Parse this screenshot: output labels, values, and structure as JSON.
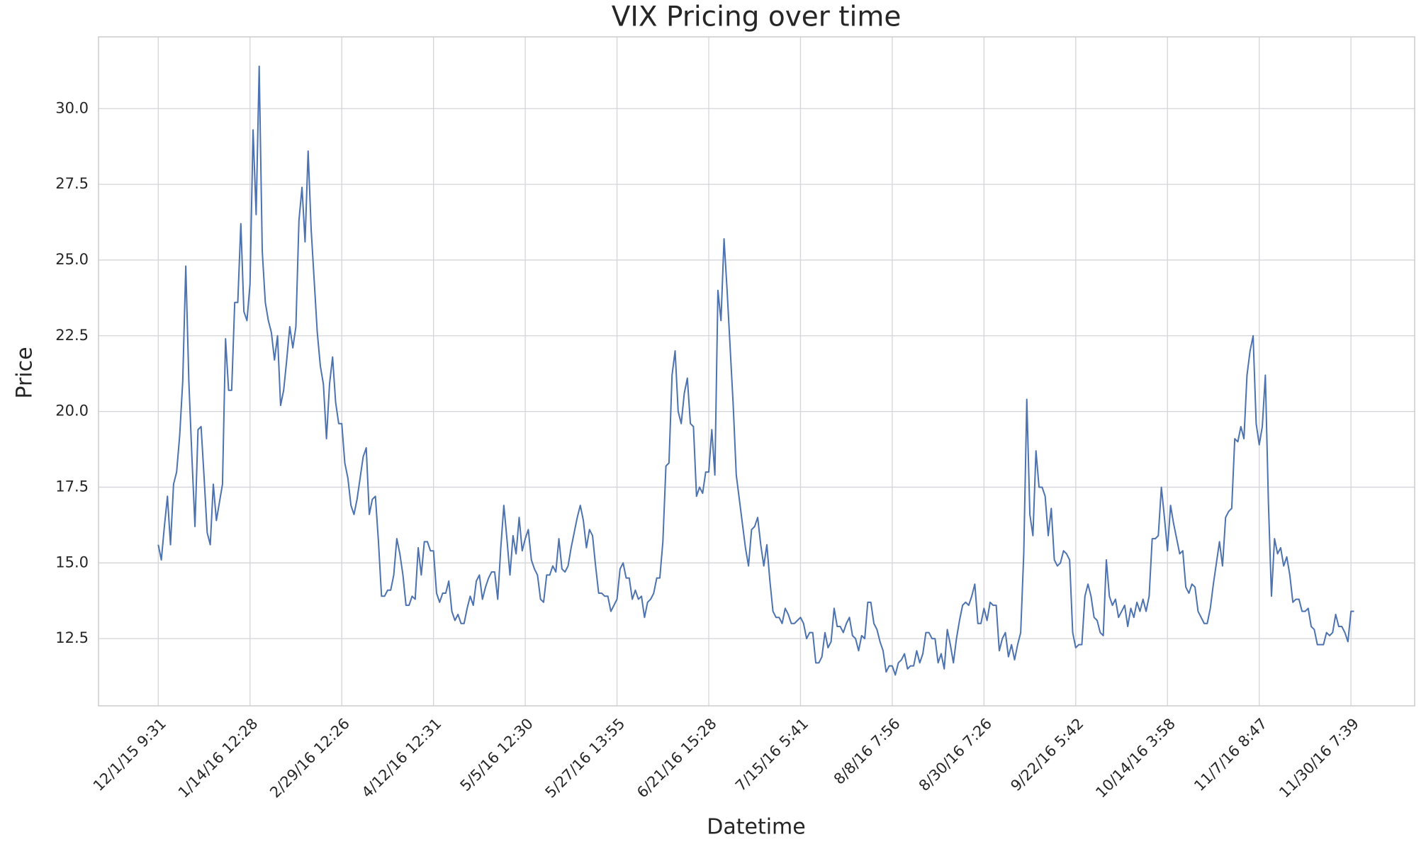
{
  "chart_data": {
    "type": "line",
    "title": "VIX Pricing over time",
    "x_label": "Datetime",
    "y_label": "Price",
    "categories": [
      "12/1/15 9:31",
      null,
      null,
      null,
      null,
      null,
      null,
      null,
      null,
      null,
      null,
      null,
      null,
      null,
      null,
      null,
      null,
      null,
      null,
      null,
      null,
      null,
      null,
      null,
      null,
      null,
      null,
      null,
      null,
      null,
      "1/14/16 12:28",
      null,
      null,
      null,
      null,
      null,
      null,
      null,
      null,
      null,
      null,
      null,
      null,
      null,
      null,
      null,
      null,
      null,
      null,
      null,
      null,
      null,
      null,
      null,
      null,
      null,
      null,
      null,
      null,
      null,
      "2/29/16 12:26",
      null,
      null,
      null,
      null,
      null,
      null,
      null,
      null,
      null,
      null,
      null,
      null,
      null,
      null,
      null,
      null,
      null,
      null,
      null,
      null,
      null,
      null,
      null,
      null,
      null,
      null,
      null,
      null,
      null,
      "4/12/16 12:31",
      null,
      null,
      null,
      null,
      null,
      null,
      null,
      null,
      null,
      null,
      null,
      null,
      null,
      null,
      null,
      null,
      null,
      null,
      null,
      null,
      null,
      null,
      null,
      null,
      null,
      null,
      null,
      null,
      null,
      "5/5/16 12:30",
      null,
      null,
      null,
      null,
      null,
      null,
      null,
      null,
      null,
      null,
      null,
      null,
      null,
      null,
      null,
      null,
      null,
      null,
      null,
      null,
      null,
      null,
      null,
      null,
      null,
      null,
      null,
      null,
      null,
      "5/27/16 13:55",
      null,
      null,
      null,
      null,
      null,
      null,
      null,
      null,
      null,
      null,
      null,
      null,
      null,
      null,
      null,
      null,
      null,
      null,
      null,
      null,
      null,
      null,
      null,
      null,
      null,
      null,
      null,
      null,
      null,
      "6/21/16 15:28",
      null,
      null,
      null,
      null,
      null,
      null,
      null,
      null,
      null,
      null,
      null,
      null,
      null,
      null,
      null,
      null,
      null,
      null,
      null,
      null,
      null,
      null,
      null,
      null,
      null,
      null,
      null,
      null,
      null,
      "7/15/16 5:41",
      null,
      null,
      null,
      null,
      null,
      null,
      null,
      null,
      null,
      null,
      null,
      null,
      null,
      null,
      null,
      null,
      null,
      null,
      null,
      null,
      null,
      null,
      null,
      null,
      null,
      null,
      null,
      null,
      null,
      "8/8/16 7:56",
      null,
      null,
      null,
      null,
      null,
      null,
      null,
      null,
      null,
      null,
      null,
      null,
      null,
      null,
      null,
      null,
      null,
      null,
      null,
      null,
      null,
      null,
      null,
      null,
      null,
      null,
      null,
      null,
      null,
      "8/30/16 7:26",
      null,
      null,
      null,
      null,
      null,
      null,
      null,
      null,
      null,
      null,
      null,
      null,
      null,
      null,
      null,
      null,
      null,
      null,
      null,
      null,
      null,
      null,
      null,
      null,
      null,
      null,
      null,
      null,
      null,
      "9/22/16 5:42",
      null,
      null,
      null,
      null,
      null,
      null,
      null,
      null,
      null,
      null,
      null,
      null,
      null,
      null,
      null,
      null,
      null,
      null,
      null,
      null,
      null,
      null,
      null,
      null,
      null,
      null,
      null,
      null,
      null,
      "10/14/16 3:58",
      null,
      null,
      null,
      null,
      null,
      null,
      null,
      null,
      null,
      null,
      null,
      null,
      null,
      null,
      null,
      null,
      null,
      null,
      null,
      null,
      null,
      null,
      null,
      null,
      null,
      null,
      null,
      null,
      null,
      "11/7/16 8:47",
      null,
      null,
      null,
      null,
      null,
      null,
      null,
      null,
      null,
      null,
      null,
      null,
      null,
      null,
      null,
      null,
      null,
      null,
      null,
      null,
      null,
      null,
      null,
      null,
      null,
      null,
      null,
      null,
      null,
      "11/30/16 7:39",
      null
    ],
    "values": [
      15.6,
      15.1,
      16.2,
      17.2,
      15.6,
      17.6,
      18.0,
      19.2,
      21.0,
      24.8,
      21.0,
      18.5,
      16.2,
      19.4,
      19.5,
      17.8,
      16.0,
      15.6,
      17.6,
      16.4,
      17.0,
      17.6,
      22.4,
      20.7,
      20.7,
      23.6,
      23.6,
      26.2,
      23.3,
      23.0,
      24.2,
      29.3,
      26.5,
      31.4,
      25.3,
      23.6,
      23.0,
      22.6,
      21.7,
      22.5,
      20.2,
      20.7,
      21.7,
      22.8,
      22.1,
      22.8,
      26.3,
      27.4,
      25.6,
      28.6,
      26.0,
      24.3,
      22.6,
      21.5,
      20.9,
      19.1,
      20.9,
      21.8,
      20.3,
      19.6,
      19.6,
      18.3,
      17.8,
      16.9,
      16.6,
      17.1,
      17.8,
      18.5,
      18.8,
      16.6,
      17.1,
      17.2,
      15.7,
      13.9,
      13.9,
      14.1,
      14.1,
      14.6,
      15.8,
      15.3,
      14.6,
      13.6,
      13.6,
      13.9,
      13.8,
      15.5,
      14.6,
      15.7,
      15.7,
      15.4,
      15.4,
      14.0,
      13.7,
      14.0,
      14.0,
      14.4,
      13.4,
      13.1,
      13.3,
      13.0,
      13.0,
      13.5,
      13.9,
      13.6,
      14.4,
      14.6,
      13.8,
      14.2,
      14.5,
      14.7,
      14.7,
      13.8,
      15.5,
      16.9,
      15.8,
      14.6,
      15.9,
      15.3,
      16.5,
      15.4,
      15.8,
      16.1,
      15.1,
      14.8,
      14.6,
      13.8,
      13.7,
      14.6,
      14.6,
      14.9,
      14.7,
      15.8,
      14.8,
      14.7,
      14.9,
      15.5,
      16.0,
      16.5,
      16.9,
      16.4,
      15.5,
      16.1,
      15.9,
      14.9,
      14.0,
      14.0,
      13.9,
      13.9,
      13.4,
      13.6,
      13.8,
      14.8,
      15.0,
      14.5,
      14.5,
      13.8,
      14.1,
      13.8,
      13.9,
      13.2,
      13.7,
      13.8,
      14.0,
      14.5,
      14.5,
      15.7,
      18.2,
      18.3,
      21.2,
      22.0,
      20.0,
      19.6,
      20.6,
      21.1,
      19.6,
      19.5,
      17.2,
      17.5,
      17.3,
      18.0,
      18.0,
      19.4,
      17.9,
      24.0,
      23.0,
      25.7,
      24.0,
      22.1,
      20.2,
      17.9,
      17.1,
      16.3,
      15.5,
      14.9,
      16.1,
      16.2,
      16.5,
      15.6,
      14.9,
      15.6,
      14.4,
      13.4,
      13.2,
      13.2,
      13.0,
      13.5,
      13.3,
      13.0,
      13.0,
      13.1,
      13.2,
      13.0,
      12.5,
      12.7,
      12.7,
      11.7,
      11.7,
      11.9,
      12.7,
      12.2,
      12.4,
      13.5,
      12.9,
      12.9,
      12.7,
      13.0,
      13.2,
      12.6,
      12.5,
      12.1,
      12.6,
      12.5,
      13.7,
      13.7,
      13.0,
      12.8,
      12.4,
      12.1,
      11.4,
      11.6,
      11.6,
      11.3,
      11.7,
      11.8,
      12.0,
      11.5,
      11.6,
      11.6,
      12.1,
      11.7,
      12.0,
      12.7,
      12.7,
      12.5,
      12.5,
      11.7,
      12.0,
      11.5,
      12.8,
      12.3,
      11.7,
      12.5,
      13.1,
      13.6,
      13.7,
      13.6,
      13.9,
      14.3,
      13.0,
      13.0,
      13.5,
      13.1,
      13.7,
      13.6,
      13.6,
      12.1,
      12.5,
      12.7,
      11.9,
      12.3,
      11.8,
      12.3,
      12.7,
      15.3,
      20.4,
      16.6,
      15.9,
      18.7,
      17.5,
      17.5,
      17.2,
      15.9,
      16.8,
      15.1,
      14.9,
      15.0,
      15.4,
      15.3,
      15.1,
      12.7,
      12.2,
      12.3,
      12.3,
      13.9,
      14.3,
      13.9,
      13.2,
      13.1,
      12.7,
      12.6,
      15.1,
      13.9,
      13.6,
      13.8,
      13.2,
      13.4,
      13.6,
      12.9,
      13.5,
      13.2,
      13.7,
      13.4,
      13.8,
      13.4,
      13.9,
      15.8,
      15.8,
      15.9,
      17.5,
      16.5,
      15.4,
      16.9,
      16.3,
      15.8,
      15.3,
      15.4,
      14.2,
      14.0,
      14.3,
      14.2,
      13.4,
      13.2,
      13.0,
      13.0,
      13.5,
      14.3,
      15.0,
      15.7,
      14.9,
      16.5,
      16.7,
      16.8,
      19.1,
      19.0,
      19.5,
      19.1,
      21.2,
      22.0,
      22.5,
      19.6,
      18.9,
      19.5,
      21.2,
      17.0,
      13.9,
      15.8,
      15.3,
      15.5,
      14.9,
      15.2,
      14.6,
      13.7,
      13.8,
      13.8,
      13.4,
      13.4,
      13.5,
      12.9,
      12.8,
      12.3,
      12.3,
      12.3,
      12.7,
      12.6,
      12.7,
      13.3,
      12.9,
      12.9,
      12.7,
      12.4,
      13.4,
      13.4
    ],
    "color": "#4c72b0",
    "ylim": [
      10.28,
      32.37
    ],
    "yticks": [
      12.5,
      {
        "value": 15,
        "label": "15.0"
      },
      17.5,
      {
        "value": 20,
        "label": "20.0"
      },
      22.5,
      {
        "value": 25,
        "label": "25.0"
      },
      27.5,
      {
        "value": 30,
        "label": "30.0"
      }
    ],
    "grid": true
  }
}
